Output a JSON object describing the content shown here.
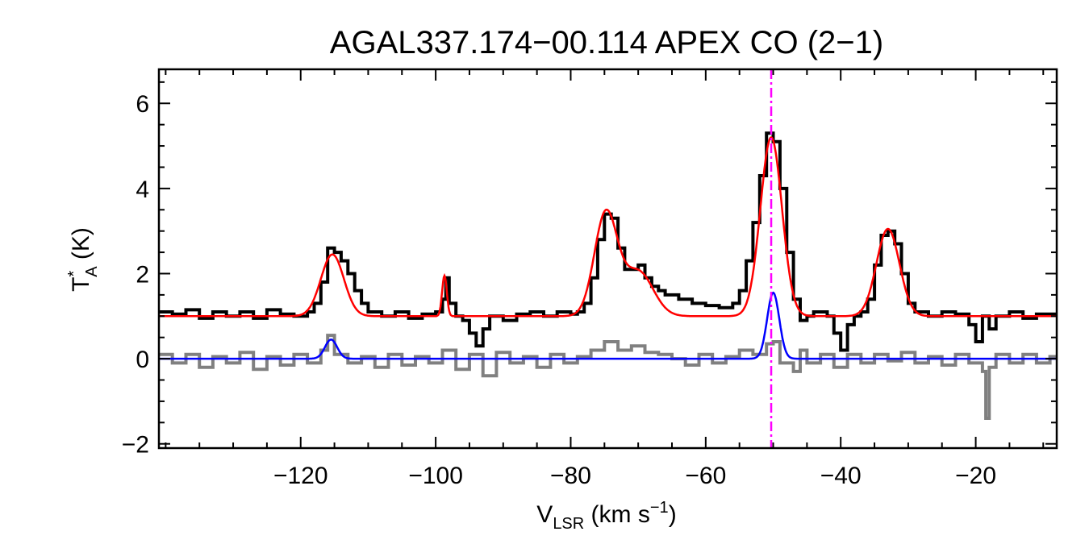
{
  "chart_data": {
    "type": "line",
    "title": "AGAL337.174−00.114  APEX CO (2−1)",
    "xlabel": {
      "main": "V",
      "sub": "LSR",
      "unit_open": " (km s",
      "unit_sup": "−1",
      "unit_close": ")"
    },
    "ylabel": {
      "main": "T",
      "sup": "*",
      "sub": "A",
      "unit": " (K)"
    },
    "xlim": [
      -141,
      -8
    ],
    "ylim": [
      -2.1,
      6.8
    ],
    "xticks": [
      -120,
      -100,
      -80,
      -60,
      -40,
      -20
    ],
    "xtick_labels": [
      "−120",
      "−100",
      "−80",
      "−60",
      "−40",
      "−20"
    ],
    "yticks": [
      -2,
      0,
      2,
      4,
      6
    ],
    "ytick_labels": [
      "−2",
      "0",
      "2",
      "4",
      "6"
    ],
    "grid": false,
    "vline": {
      "x": -50.3,
      "style": "dash-dot",
      "color": "#ff00ff"
    },
    "series": [
      {
        "role": "observed spectrum",
        "style": "step",
        "color": "#000000",
        "points": [
          [
            -141,
            1.1
          ],
          [
            -139,
            1.05
          ],
          [
            -137,
            1.15
          ],
          [
            -135,
            0.95
          ],
          [
            -133,
            1.1
          ],
          [
            -131,
            1.0
          ],
          [
            -129,
            1.1
          ],
          [
            -127,
            0.95
          ],
          [
            -125,
            1.15
          ],
          [
            -123,
            1.05
          ],
          [
            -121,
            1.0
          ],
          [
            -119,
            1.1
          ],
          [
            -118,
            1.3
          ],
          [
            -117,
            1.8
          ],
          [
            -116,
            2.6
          ],
          [
            -115,
            2.5
          ],
          [
            -114,
            2.3
          ],
          [
            -113,
            2.0
          ],
          [
            -112,
            1.6
          ],
          [
            -111,
            1.3
          ],
          [
            -110,
            1.1
          ],
          [
            -108,
            1.0
          ],
          [
            -106,
            1.1
          ],
          [
            -104,
            0.95
          ],
          [
            -102,
            1.05
          ],
          [
            -100,
            1.1
          ],
          [
            -99,
            1.4
          ],
          [
            -98.5,
            1.9
          ],
          [
            -98,
            1.3
          ],
          [
            -97,
            1.0
          ],
          [
            -96,
            0.9
          ],
          [
            -95,
            0.6
          ],
          [
            -94,
            0.3
          ],
          [
            -93,
            0.7
          ],
          [
            -92,
            1.0
          ],
          [
            -90,
            0.9
          ],
          [
            -88,
            1.05
          ],
          [
            -86,
            1.1
          ],
          [
            -84,
            1.0
          ],
          [
            -82,
            1.1
          ],
          [
            -80,
            1.05
          ],
          [
            -79,
            1.1
          ],
          [
            -78,
            1.3
          ],
          [
            -77,
            1.9
          ],
          [
            -76,
            2.8
          ],
          [
            -75,
            3.4
          ],
          [
            -74,
            3.3
          ],
          [
            -73,
            2.6
          ],
          [
            -72,
            2.1
          ],
          [
            -71,
            2.1
          ],
          [
            -70,
            2.2
          ],
          [
            -69,
            1.9
          ],
          [
            -68,
            1.7
          ],
          [
            -67,
            1.6
          ],
          [
            -66,
            1.5
          ],
          [
            -64,
            1.4
          ],
          [
            -62,
            1.3
          ],
          [
            -60,
            1.25
          ],
          [
            -58,
            1.2
          ],
          [
            -56,
            1.3
          ],
          [
            -55,
            1.6
          ],
          [
            -54,
            2.3
          ],
          [
            -53,
            3.2
          ],
          [
            -52,
            4.3
          ],
          [
            -51,
            5.3
          ],
          [
            -50,
            5.1
          ],
          [
            -49,
            4.0
          ],
          [
            -48,
            2.5
          ],
          [
            -47,
            1.4
          ],
          [
            -46,
            0.9
          ],
          [
            -45,
            1.0
          ],
          [
            -44,
            1.1
          ],
          [
            -42,
            1.0
          ],
          [
            -41,
            0.6
          ],
          [
            -40,
            0.2
          ],
          [
            -39,
            0.8
          ],
          [
            -38,
            1.0
          ],
          [
            -37,
            1.1
          ],
          [
            -36,
            1.4
          ],
          [
            -35,
            2.2
          ],
          [
            -34,
            2.9
          ],
          [
            -33,
            3.0
          ],
          [
            -32,
            2.7
          ],
          [
            -31,
            2.0
          ],
          [
            -30,
            1.3
          ],
          [
            -29,
            1.1
          ],
          [
            -27,
            1.0
          ],
          [
            -25,
            1.1
          ],
          [
            -23,
            1.05
          ],
          [
            -21,
            0.8
          ],
          [
            -20,
            0.4
          ],
          [
            -19,
            1.0
          ],
          [
            -18,
            0.7
          ],
          [
            -17,
            1.0
          ],
          [
            -15,
            1.1
          ],
          [
            -13,
            0.95
          ],
          [
            -11,
            1.05
          ],
          [
            -8,
            1.0
          ]
        ]
      },
      {
        "role": "residual",
        "style": "step",
        "color": "#808080",
        "points": [
          [
            -141,
            0.1
          ],
          [
            -139,
            -0.1
          ],
          [
            -137,
            0.1
          ],
          [
            -135,
            -0.2
          ],
          [
            -133,
            0.05
          ],
          [
            -131,
            -0.1
          ],
          [
            -129,
            0.15
          ],
          [
            -127,
            -0.25
          ],
          [
            -125,
            0.05
          ],
          [
            -123,
            -0.15
          ],
          [
            -121,
            0.1
          ],
          [
            -119,
            -0.1
          ],
          [
            -117,
            0.2
          ],
          [
            -116,
            0.55
          ],
          [
            -115,
            0.1
          ],
          [
            -113,
            -0.1
          ],
          [
            -111,
            0.05
          ],
          [
            -109,
            -0.2
          ],
          [
            -107,
            0.1
          ],
          [
            -105,
            -0.15
          ],
          [
            -103,
            0.05
          ],
          [
            -101,
            -0.1
          ],
          [
            -99,
            0.2
          ],
          [
            -97,
            -0.25
          ],
          [
            -95,
            0.1
          ],
          [
            -93,
            -0.4
          ],
          [
            -91,
            0.15
          ],
          [
            -89,
            -0.1
          ],
          [
            -87,
            0.05
          ],
          [
            -85,
            -0.2
          ],
          [
            -83,
            0.1
          ],
          [
            -81,
            -0.1
          ],
          [
            -79,
            0.05
          ],
          [
            -77,
            0.2
          ],
          [
            -75,
            0.4
          ],
          [
            -73,
            0.2
          ],
          [
            -71,
            0.3
          ],
          [
            -69,
            0.15
          ],
          [
            -67,
            0.1
          ],
          [
            -65,
            0.0
          ],
          [
            -63,
            -0.15
          ],
          [
            -61,
            0.1
          ],
          [
            -59,
            -0.1
          ],
          [
            -57,
            0.05
          ],
          [
            -55,
            0.2
          ],
          [
            -53,
            0.1
          ],
          [
            -51,
            0.35
          ],
          [
            -50,
            0.4
          ],
          [
            -49,
            -0.1
          ],
          [
            -47,
            -0.3
          ],
          [
            -46,
            0.2
          ],
          [
            -45,
            -0.1
          ],
          [
            -43,
            0.1
          ],
          [
            -41,
            -0.2
          ],
          [
            -39,
            0.1
          ],
          [
            -37,
            -0.1
          ],
          [
            -35,
            0.1
          ],
          [
            -33,
            -0.05
          ],
          [
            -31,
            0.15
          ],
          [
            -29,
            -0.1
          ],
          [
            -27,
            0.05
          ],
          [
            -25,
            -0.15
          ],
          [
            -23,
            0.1
          ],
          [
            -21,
            -0.1
          ],
          [
            -19,
            -0.3
          ],
          [
            -18.5,
            -1.4
          ],
          [
            -18,
            -0.2
          ],
          [
            -17,
            0.1
          ],
          [
            -15,
            -0.1
          ],
          [
            -13,
            0.1
          ],
          [
            -11,
            -0.1
          ],
          [
            -9,
            0.05
          ],
          [
            -8,
            0.0
          ]
        ]
      },
      {
        "role": "gaussian fit",
        "style": "smooth",
        "color": "#ff0000",
        "baseline": 1.0,
        "components": [
          {
            "center": -115.3,
            "amplitude": 1.45,
            "sigma": 1.7
          },
          {
            "center": -98.7,
            "amplitude": 0.95,
            "sigma": 0.35
          },
          {
            "center": -74.8,
            "amplitude": 2.4,
            "sigma": 1.7
          },
          {
            "center": -70.0,
            "amplitude": 1.05,
            "sigma": 2.2
          },
          {
            "center": -50.3,
            "amplitude": 4.2,
            "sigma": 1.6
          },
          {
            "center": -33.0,
            "amplitude": 2.05,
            "sigma": 1.7
          }
        ]
      },
      {
        "role": "gaussian fit",
        "style": "smooth",
        "color": "#0000ff",
        "baseline": 0.0,
        "components": [
          {
            "center": -115.5,
            "amplitude": 0.45,
            "sigma": 0.9
          },
          {
            "center": -50.0,
            "amplitude": 1.55,
            "sigma": 0.9
          }
        ]
      }
    ]
  }
}
